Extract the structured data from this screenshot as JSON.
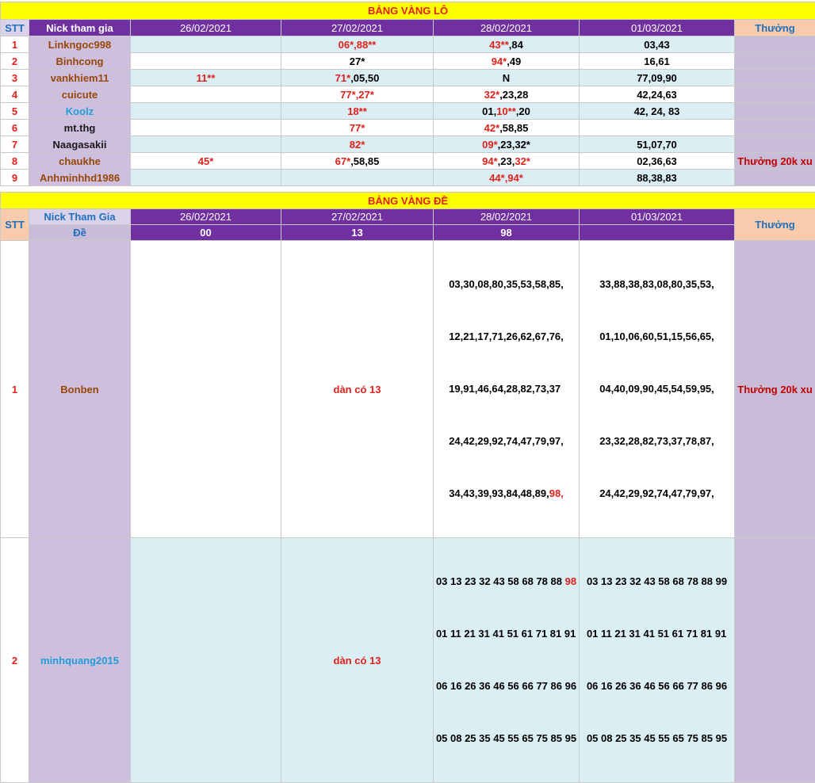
{
  "lo": {
    "title": "BẢNG VÀNG LÔ",
    "headers": {
      "stt": "STT",
      "nick": "Nick tham gia",
      "dates": [
        "26/02/2021",
        "27/02/2021",
        "28/02/2021",
        "01/03/2021"
      ],
      "thuong": "Thưởng"
    },
    "rows": [
      {
        "stt": "1",
        "nick": "Linkngoc998",
        "nick_color": "brown",
        "cells": [
          [],
          [
            {
              "t": "06*",
              "r": true
            },
            {
              "t": ",",
              "r": true
            },
            {
              "t": "88**",
              "r": true
            }
          ],
          [
            {
              "t": "43**",
              "r": true
            },
            {
              "t": ",84",
              "r": false
            }
          ],
          [
            {
              "t": "03,43",
              "r": false
            }
          ]
        ],
        "thuong": ""
      },
      {
        "stt": "2",
        "nick": "Binhcong",
        "nick_color": "brown",
        "cells": [
          [],
          [
            {
              "t": "27*",
              "r": false
            }
          ],
          [
            {
              "t": "94*",
              "r": true
            },
            {
              "t": ",49",
              "r": false
            }
          ],
          [
            {
              "t": "16,61",
              "r": false
            }
          ]
        ],
        "thuong": ""
      },
      {
        "stt": "3",
        "nick": "vankhiem11",
        "nick_color": "brown",
        "cells": [
          [
            {
              "t": "11**",
              "r": true
            }
          ],
          [
            {
              "t": "71*",
              "r": true
            },
            {
              "t": ",05,50",
              "r": false
            }
          ],
          [
            {
              "t": "N",
              "r": false
            }
          ],
          [
            {
              "t": "77,09,90",
              "r": false
            }
          ]
        ],
        "thuong": ""
      },
      {
        "stt": "4",
        "nick": "cuicute",
        "nick_color": "brown",
        "cells": [
          [],
          [
            {
              "t": "77*,27*",
              "r": true
            }
          ],
          [
            {
              "t": "32*",
              "r": true
            },
            {
              "t": ",23,28",
              "r": false
            }
          ],
          [
            {
              "t": "42,24,63",
              "r": false
            }
          ]
        ],
        "thuong": ""
      },
      {
        "stt": "5",
        "nick": "Koolz",
        "nick_color": "blue",
        "cells": [
          [],
          [
            {
              "t": "18**",
              "r": true
            }
          ],
          [
            {
              "t": "01,",
              "r": false
            },
            {
              "t": "10**",
              "r": true
            },
            {
              "t": ",20",
              "r": false
            }
          ],
          [
            {
              "t": "42, 24, 83",
              "r": false
            }
          ]
        ],
        "thuong": ""
      },
      {
        "stt": "6",
        "nick": "mt.thg",
        "nick_color": "dark",
        "cells": [
          [],
          [
            {
              "t": "77*",
              "r": true
            }
          ],
          [
            {
              "t": "42*",
              "r": true
            },
            {
              "t": ",58,85",
              "r": false
            }
          ],
          []
        ],
        "thuong": ""
      },
      {
        "stt": "7",
        "nick": "Naagasakii",
        "nick_color": "dark",
        "cells": [
          [],
          [
            {
              "t": "82*",
              "r": true
            }
          ],
          [
            {
              "t": "09*",
              "r": true
            },
            {
              "t": ",23,32*",
              "r": false
            }
          ],
          [
            {
              "t": "51,07,70",
              "r": false
            }
          ]
        ],
        "thuong": ""
      },
      {
        "stt": "8",
        "nick": "chaukhe",
        "nick_color": "brown",
        "cells": [
          [
            {
              "t": "45*",
              "r": true
            }
          ],
          [
            {
              "t": "67*",
              "r": true
            },
            {
              "t": ",58,85",
              "r": false
            }
          ],
          [
            {
              "t": "94*",
              "r": true
            },
            {
              "t": ",23,",
              "r": false
            },
            {
              "t": "32*",
              "r": true
            }
          ],
          [
            {
              "t": "02,36,63",
              "r": false
            }
          ]
        ],
        "thuong": "Thưởng 20k xu"
      },
      {
        "stt": "9",
        "nick": "Anhminhhd1986",
        "nick_color": "brown",
        "cells": [
          [],
          [],
          [
            {
              "t": "44*,94*",
              "r": true
            }
          ],
          [
            {
              "t": "88,38,83",
              "r": false
            }
          ]
        ],
        "thuong": ""
      }
    ]
  },
  "de": {
    "title": "BẢNG VÀNG ĐỀ",
    "headers": {
      "stt": "STT",
      "nick": "Nick Tham Gia",
      "de_label": "Đề",
      "dates": [
        "26/02/2021",
        "27/02/2021",
        "28/02/2021",
        "01/03/2021"
      ],
      "de_values": [
        "00",
        "13",
        "98",
        ""
      ],
      "thuong": "Thưởng"
    },
    "rows": [
      {
        "stt": "1",
        "nick": "Bonben",
        "c27": "dàn có 13",
        "c28": [
          "03,30,08,80,35,53,58,85,",
          "12,21,17,71,26,62,67,76,",
          "19,91,46,64,28,82,73,37",
          "24,42,29,92,74,47,79,97,",
          "34,43,39,93,84,48,89,"
        ],
        "c28_red": "98,",
        "c01": [
          "33,88,38,83,08,80,35,53,",
          "01,10,06,60,51,15,56,65,",
          "04,40,09,90,45,54,59,95,",
          "23,32,28,82,73,37,78,87,",
          "24,42,29,92,74,47,79,97,"
        ],
        "thuong": "Thưởng 20k xu"
      },
      {
        "stt": "2",
        "nick": "minhquang2015",
        "c27": "dàn có 13",
        "c28_first": "03 13 23 32 43 58 68 78 88 ",
        "c28_first_red": "98",
        "c28": [
          "01 11 21 31 41 51 61 71 81 91",
          "06 16 26 36 46 56 66 77 86 96",
          "05 08 25 35 45 55 65 75 85 95"
        ],
        "c01": [
          "03 13 23 32 43 58 68 78 88 99",
          "01 11 21 31 41 51 61 71 81 91",
          "06 16 26 36 46 56 66 77 86 96",
          "05 08 25 35 45 55 65 75 85 95"
        ],
        "thuong": ""
      }
    ]
  }
}
